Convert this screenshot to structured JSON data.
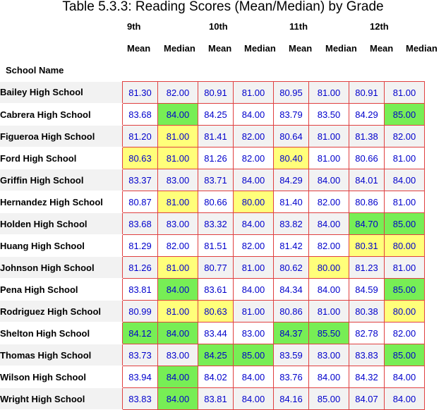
{
  "title": "Table 5.3.3: Reading Scores (Mean/Median) by Grade",
  "header": {
    "school_label": "School Name",
    "grades": [
      "9th",
      "10th",
      "11th",
      "12th"
    ],
    "mean_label": "Mean",
    "median_label": "Median"
  },
  "colors": {
    "value_text": "#0000cc",
    "border": "#e04040",
    "low_highlight": "#ffff7a",
    "high_highlight": "#77ee55",
    "alt_row": "#f2f2f2"
  },
  "rows": [
    {
      "school": "Bailey High School",
      "values": [
        "81.30",
        "82.00",
        "80.91",
        "81.00",
        "80.95",
        "81.00",
        "80.91",
        "81.00"
      ],
      "hl": [
        "",
        "",
        "",
        "",
        "",
        "",
        "",
        ""
      ]
    },
    {
      "school": "Cabrera High School",
      "values": [
        "83.68",
        "84.00",
        "84.25",
        "84.00",
        "83.79",
        "83.50",
        "84.29",
        "85.00"
      ],
      "hl": [
        "",
        "green",
        "",
        "",
        "",
        "",
        "",
        "green"
      ]
    },
    {
      "school": "Figueroa High School",
      "values": [
        "81.20",
        "81.00",
        "81.41",
        "82.00",
        "80.64",
        "81.00",
        "81.38",
        "82.00"
      ],
      "hl": [
        "",
        "yellow",
        "",
        "",
        "",
        "",
        "",
        ""
      ]
    },
    {
      "school": "Ford High School",
      "values": [
        "80.63",
        "81.00",
        "81.26",
        "82.00",
        "80.40",
        "81.00",
        "80.66",
        "81.00"
      ],
      "hl": [
        "yellow",
        "yellow",
        "",
        "",
        "yellow",
        "",
        "",
        ""
      ]
    },
    {
      "school": "Griffin High School",
      "values": [
        "83.37",
        "83.00",
        "83.71",
        "84.00",
        "84.29",
        "84.00",
        "84.01",
        "84.00"
      ],
      "hl": [
        "",
        "",
        "",
        "",
        "",
        "",
        "",
        ""
      ]
    },
    {
      "school": "Hernandez High School",
      "values": [
        "80.87",
        "81.00",
        "80.66",
        "80.00",
        "81.40",
        "82.00",
        "80.86",
        "81.00"
      ],
      "hl": [
        "",
        "yellow",
        "",
        "yellow",
        "",
        "",
        "",
        ""
      ]
    },
    {
      "school": "Holden High School",
      "values": [
        "83.68",
        "83.00",
        "83.32",
        "84.00",
        "83.82",
        "84.00",
        "84.70",
        "85.00"
      ],
      "hl": [
        "",
        "",
        "",
        "",
        "",
        "",
        "green",
        "green"
      ]
    },
    {
      "school": "Huang High School",
      "values": [
        "81.29",
        "82.00",
        "81.51",
        "82.00",
        "81.42",
        "82.00",
        "80.31",
        "80.00"
      ],
      "hl": [
        "",
        "",
        "",
        "",
        "",
        "",
        "yellow",
        "yellow"
      ]
    },
    {
      "school": "Johnson High School",
      "values": [
        "81.26",
        "81.00",
        "80.77",
        "81.00",
        "80.62",
        "80.00",
        "81.23",
        "81.00"
      ],
      "hl": [
        "",
        "yellow",
        "",
        "",
        "",
        "yellow",
        "",
        ""
      ]
    },
    {
      "school": "Pena High School",
      "values": [
        "83.81",
        "84.00",
        "83.61",
        "84.00",
        "84.34",
        "84.00",
        "84.59",
        "85.00"
      ],
      "hl": [
        "",
        "green",
        "",
        "",
        "",
        "",
        "",
        "green"
      ]
    },
    {
      "school": "Rodriguez High School",
      "values": [
        "80.99",
        "81.00",
        "80.63",
        "81.00",
        "80.86",
        "81.00",
        "80.38",
        "80.00"
      ],
      "hl": [
        "",
        "yellow",
        "yellow",
        "",
        "",
        "",
        "",
        "yellow"
      ]
    },
    {
      "school": "Shelton High School",
      "values": [
        "84.12",
        "84.00",
        "83.44",
        "83.00",
        "84.37",
        "85.50",
        "82.78",
        "82.00"
      ],
      "hl": [
        "green",
        "green",
        "",
        "",
        "green",
        "green",
        "",
        ""
      ]
    },
    {
      "school": "Thomas High School",
      "values": [
        "83.73",
        "83.00",
        "84.25",
        "85.00",
        "83.59",
        "83.00",
        "83.83",
        "85.00"
      ],
      "hl": [
        "",
        "",
        "green",
        "green",
        "",
        "",
        "",
        "green"
      ]
    },
    {
      "school": "Wilson High School",
      "values": [
        "83.94",
        "84.00",
        "84.02",
        "84.00",
        "83.76",
        "84.00",
        "84.32",
        "84.00"
      ],
      "hl": [
        "",
        "green",
        "",
        "",
        "",
        "",
        "",
        ""
      ]
    },
    {
      "school": "Wright High School",
      "values": [
        "83.83",
        "84.00",
        "83.81",
        "84.00",
        "84.16",
        "85.00",
        "84.07",
        "84.00"
      ],
      "hl": [
        "",
        "green",
        "",
        "",
        "",
        "",
        "",
        ""
      ]
    }
  ]
}
